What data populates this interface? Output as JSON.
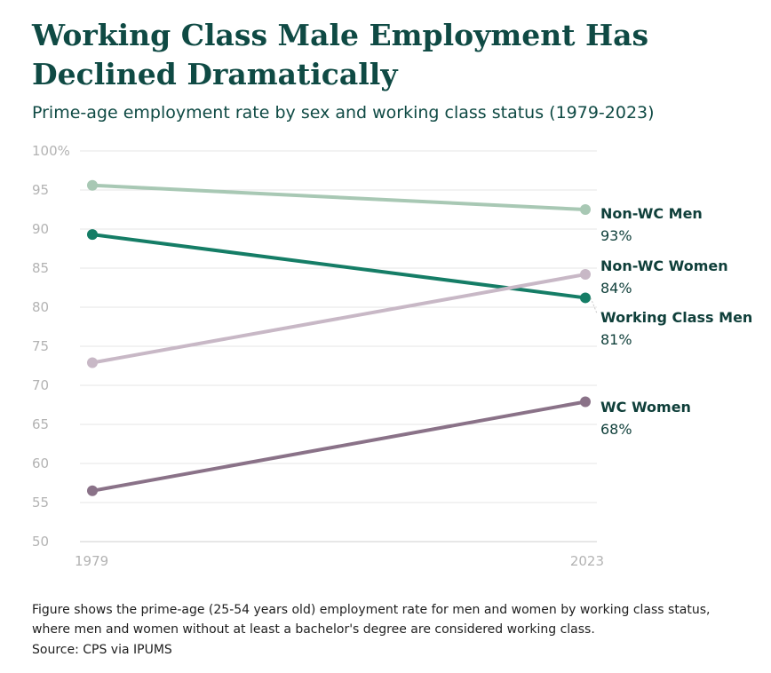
{
  "chart_data": {
    "type": "line",
    "title": "Working Class Male Employment Has Declined Dramatically",
    "subtitle": "Prime-age employment rate by sex and working class status (1979-2023)",
    "x": [
      "1979",
      "2023"
    ],
    "ylim": [
      50,
      100
    ],
    "yticks": [
      "100%",
      "95",
      "90",
      "85",
      "80",
      "75",
      "70",
      "65",
      "60",
      "55",
      "50"
    ],
    "ytick_values": [
      100,
      95,
      90,
      85,
      80,
      75,
      70,
      65,
      60,
      55,
      50
    ],
    "grid": true,
    "legend": "none",
    "series": [
      {
        "name": "Non-WC Men",
        "values": [
          95.6,
          92.5
        ],
        "end_label": "93%",
        "color": "#a8c8b4"
      },
      {
        "name": "Working Class Men",
        "values": [
          89.3,
          81.2
        ],
        "end_label": "81%",
        "color": "#157d66"
      },
      {
        "name": "Non-WC Women",
        "values": [
          72.9,
          84.2
        ],
        "end_label": "84%",
        "color": "#c8b8c6"
      },
      {
        "name": "WC Women",
        "values": [
          56.5,
          67.9
        ],
        "end_label": "68%",
        "color": "#8a7288"
      }
    ]
  },
  "footnote": "Figure shows the prime-age (25-54 years old) employment rate for men and women by working class status, where men and women without at least a bachelor's degree are considered working class.",
  "source": "Source: CPS via IPUMS"
}
